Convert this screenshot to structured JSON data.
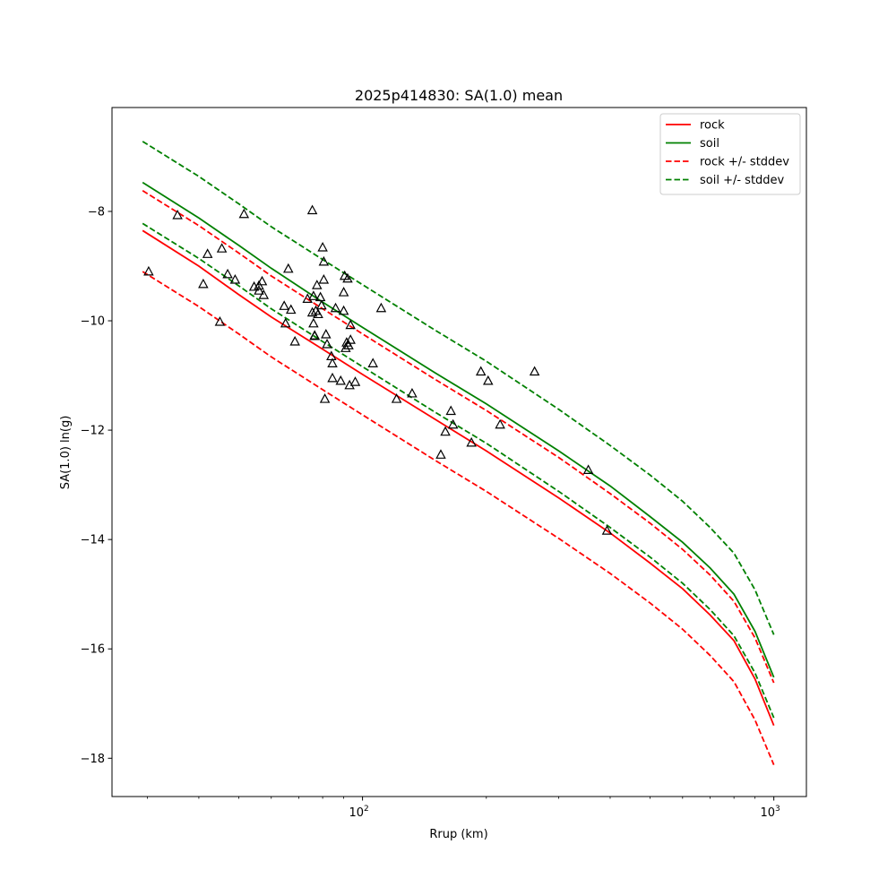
{
  "chart_data": {
    "type": "scatter",
    "title": "2025p414830: SA(1.0) mean",
    "xlabel": "Rrup (km)",
    "ylabel": "SA(1.0) ln(g)",
    "xscale": "log",
    "xlim": [
      24.6,
      1200
    ],
    "ylim": [
      -18.7,
      -6.1
    ],
    "x_ticks": [
      {
        "value": 100,
        "base": "10",
        "exp": "2"
      },
      {
        "value": 1000,
        "base": "10",
        "exp": "3"
      }
    ],
    "y_ticks": [
      {
        "value": -8,
        "label": "−8"
      },
      {
        "value": -10,
        "label": "−10"
      },
      {
        "value": -12,
        "label": "−12"
      },
      {
        "value": -14,
        "label": "−14"
      },
      {
        "value": -16,
        "label": "−16"
      },
      {
        "value": -18,
        "label": "−18"
      }
    ],
    "grid": false,
    "legend_position": "top-right",
    "series": [
      {
        "name": "rock",
        "kind": "line",
        "style": "solid",
        "color": "#ff0000",
        "points": [
          [
            29.2,
            -8.35
          ],
          [
            40,
            -9.0
          ],
          [
            50,
            -9.52
          ],
          [
            60,
            -9.93
          ],
          [
            80,
            -10.52
          ],
          [
            100,
            -10.98
          ],
          [
            150,
            -11.8
          ],
          [
            200,
            -12.38
          ],
          [
            300,
            -13.24
          ],
          [
            400,
            -13.88
          ],
          [
            500,
            -14.43
          ],
          [
            600,
            -14.9
          ],
          [
            700,
            -15.38
          ],
          [
            800,
            -15.85
          ],
          [
            900,
            -16.55
          ],
          [
            1000,
            -17.4
          ]
        ]
      },
      {
        "name": "soil",
        "kind": "line",
        "style": "solid",
        "color": "#008000",
        "points": [
          [
            29.2,
            -7.47
          ],
          [
            40,
            -8.12
          ],
          [
            50,
            -8.62
          ],
          [
            60,
            -9.04
          ],
          [
            80,
            -9.66
          ],
          [
            100,
            -10.12
          ],
          [
            150,
            -10.95
          ],
          [
            200,
            -11.52
          ],
          [
            300,
            -12.38
          ],
          [
            400,
            -13.02
          ],
          [
            500,
            -13.58
          ],
          [
            600,
            -14.05
          ],
          [
            700,
            -14.52
          ],
          [
            800,
            -15.0
          ],
          [
            900,
            -15.68
          ],
          [
            1000,
            -16.52
          ]
        ]
      },
      {
        "name": "rock +/- stddev",
        "kind": "line",
        "style": "dashed",
        "color": "#ff0000",
        "points": [
          [
            29.2,
            -7.62
          ],
          [
            40,
            -8.26
          ],
          [
            50,
            -8.76
          ],
          [
            60,
            -9.18
          ],
          [
            80,
            -9.78
          ],
          [
            100,
            -10.24
          ],
          [
            150,
            -11.07
          ],
          [
            200,
            -11.64
          ],
          [
            300,
            -12.5
          ],
          [
            400,
            -13.16
          ],
          [
            500,
            -13.7
          ],
          [
            600,
            -14.18
          ],
          [
            700,
            -14.65
          ],
          [
            800,
            -15.13
          ],
          [
            900,
            -15.8
          ],
          [
            1000,
            -16.62
          ]
        ]
      },
      {
        "name": "",
        "kind": "line",
        "style": "dashed",
        "color": "#ff0000",
        "points": [
          [
            29.2,
            -9.1
          ],
          [
            40,
            -9.74
          ],
          [
            50,
            -10.24
          ],
          [
            60,
            -10.66
          ],
          [
            80,
            -11.26
          ],
          [
            100,
            -11.72
          ],
          [
            150,
            -12.55
          ],
          [
            200,
            -13.12
          ],
          [
            300,
            -13.98
          ],
          [
            400,
            -14.62
          ],
          [
            500,
            -15.16
          ],
          [
            600,
            -15.64
          ],
          [
            700,
            -16.12
          ],
          [
            800,
            -16.6
          ],
          [
            900,
            -17.3
          ],
          [
            1000,
            -18.12
          ]
        ]
      },
      {
        "name": "soil +/- stddev",
        "kind": "line",
        "style": "dashed",
        "color": "#008000",
        "points": [
          [
            29.2,
            -6.72
          ],
          [
            40,
            -7.36
          ],
          [
            50,
            -7.86
          ],
          [
            60,
            -8.28
          ],
          [
            80,
            -8.88
          ],
          [
            100,
            -9.34
          ],
          [
            150,
            -10.17
          ],
          [
            200,
            -10.74
          ],
          [
            300,
            -11.62
          ],
          [
            400,
            -12.28
          ],
          [
            500,
            -12.82
          ],
          [
            600,
            -13.3
          ],
          [
            700,
            -13.78
          ],
          [
            800,
            -14.25
          ],
          [
            900,
            -14.92
          ],
          [
            1000,
            -15.74
          ]
        ]
      },
      {
        "name": "",
        "kind": "line",
        "style": "dashed",
        "color": "#008000",
        "points": [
          [
            29.2,
            -8.22
          ],
          [
            40,
            -8.86
          ],
          [
            50,
            -9.36
          ],
          [
            60,
            -9.78
          ],
          [
            80,
            -10.38
          ],
          [
            100,
            -10.84
          ],
          [
            150,
            -11.67
          ],
          [
            200,
            -12.24
          ],
          [
            300,
            -13.12
          ],
          [
            400,
            -13.78
          ],
          [
            500,
            -14.32
          ],
          [
            600,
            -14.8
          ],
          [
            700,
            -15.28
          ],
          [
            800,
            -15.76
          ],
          [
            900,
            -16.44
          ],
          [
            1000,
            -17.26
          ]
        ]
      },
      {
        "name": "",
        "kind": "scatter",
        "marker": "triangle",
        "color": "#000000",
        "points": [
          [
            30.2,
            -9.1
          ],
          [
            35.5,
            -8.07
          ],
          [
            41.0,
            -9.33
          ],
          [
            42.0,
            -8.78
          ],
          [
            45.0,
            -10.02
          ],
          [
            45.5,
            -8.68
          ],
          [
            47.0,
            -9.15
          ],
          [
            49.0,
            -9.25
          ],
          [
            51.5,
            -8.05
          ],
          [
            54.5,
            -9.38
          ],
          [
            56.0,
            -9.45
          ],
          [
            56.0,
            -9.36
          ],
          [
            57.0,
            -9.28
          ],
          [
            57.5,
            -9.53
          ],
          [
            64.5,
            -9.73
          ],
          [
            65.0,
            -10.05
          ],
          [
            66.0,
            -9.05
          ],
          [
            67.0,
            -9.8
          ],
          [
            68.5,
            -10.38
          ],
          [
            73.5,
            -9.6
          ],
          [
            75.5,
            -7.98
          ],
          [
            75.5,
            -9.85
          ],
          [
            76.0,
            -10.05
          ],
          [
            76.5,
            -10.28
          ],
          [
            76.0,
            -9.55
          ],
          [
            76.5,
            -10.27
          ],
          [
            77.0,
            -9.82
          ],
          [
            77.5,
            -9.35
          ],
          [
            78.0,
            -9.88
          ],
          [
            79.0,
            -9.57
          ],
          [
            79.5,
            -9.72
          ],
          [
            80.0,
            -8.66
          ],
          [
            80.5,
            -9.25
          ],
          [
            80.5,
            -8.92
          ],
          [
            81.0,
            -11.43
          ],
          [
            81.5,
            -10.25
          ],
          [
            82.0,
            -10.43
          ],
          [
            84.0,
            -10.65
          ],
          [
            84.5,
            -10.78
          ],
          [
            84.5,
            -11.05
          ],
          [
            86.0,
            -9.77
          ],
          [
            88.5,
            -11.1
          ],
          [
            90.0,
            -9.82
          ],
          [
            90.0,
            -9.48
          ],
          [
            90.5,
            -9.18
          ],
          [
            91.0,
            -10.5
          ],
          [
            91.5,
            -10.4
          ],
          [
            92.0,
            -9.23
          ],
          [
            92.5,
            -10.45
          ],
          [
            93.0,
            -11.18
          ],
          [
            93.5,
            -10.35
          ],
          [
            93.5,
            -10.08
          ],
          [
            96.0,
            -11.12
          ],
          [
            106.0,
            -10.78
          ],
          [
            111.0,
            -9.77
          ],
          [
            121.0,
            -11.43
          ],
          [
            132.0,
            -11.33
          ],
          [
            155.0,
            -12.45
          ],
          [
            159.0,
            -12.03
          ],
          [
            164.0,
            -11.65
          ],
          [
            166.0,
            -11.9
          ],
          [
            184.0,
            -12.23
          ],
          [
            194.0,
            -10.93
          ],
          [
            202.0,
            -11.1
          ],
          [
            216.0,
            -11.9
          ],
          [
            262.0,
            -10.93
          ],
          [
            354.0,
            -12.73
          ],
          [
            393.0,
            -13.84
          ]
        ]
      }
    ]
  }
}
